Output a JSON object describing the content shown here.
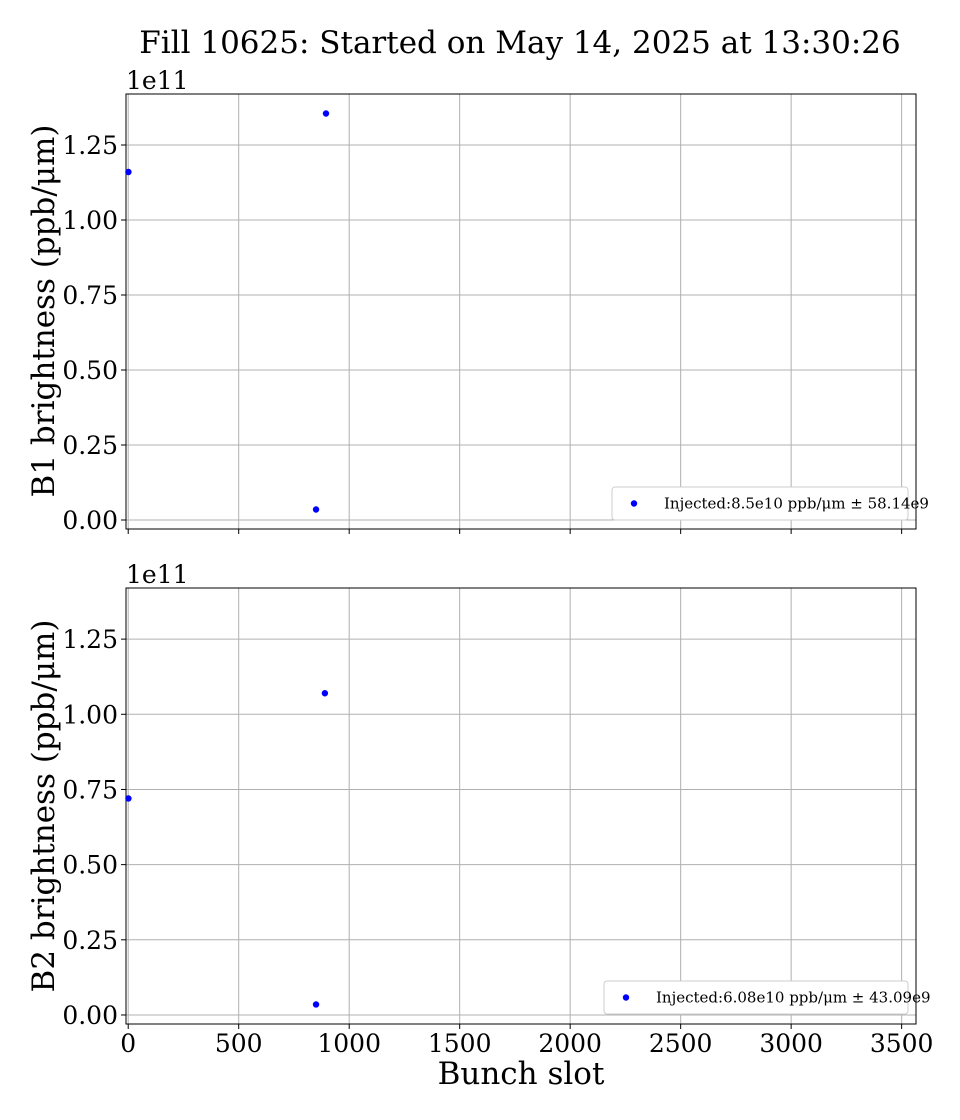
{
  "figure": {
    "title": "Fill 10625: Started on May 14, 2025 at 13:30:26"
  },
  "chart_data": [
    {
      "type": "scatter",
      "name": "b1-brightness",
      "xlabel": "",
      "ylabel": "B1 brightness (ppb/μm)",
      "offset_label": "1e11",
      "xlim": [
        -10,
        3565
      ],
      "ylim": [
        -3000000000.0,
        142000000000.0
      ],
      "x_ticks": [
        0,
        500,
        1000,
        1500,
        2000,
        2500,
        3000,
        3500
      ],
      "x_tick_labels": [],
      "y_ticks": [
        0,
        25000000000.0,
        50000000000.0,
        75000000000.0,
        100000000000.0,
        125000000000.0
      ],
      "y_tick_labels": [
        "0.00",
        "0.25",
        "0.50",
        "0.75",
        "1.00",
        "1.25"
      ],
      "grid": true,
      "legend_position": "lower-right",
      "series": [
        {
          "name": "Injected:8.5e10 ppb/μm ± 58.14e9",
          "color": "#0000ff",
          "x": [
            1,
            850,
            895
          ],
          "y": [
            116000000000.0,
            3500000000.0,
            135500000000.0
          ]
        }
      ]
    },
    {
      "type": "scatter",
      "name": "b2-brightness",
      "xlabel": "Bunch slot",
      "ylabel": "B2 brightness (ppb/μm)",
      "offset_label": "1e11",
      "xlim": [
        -10,
        3565
      ],
      "ylim": [
        -3000000000.0,
        142000000000.0
      ],
      "x_ticks": [
        0,
        500,
        1000,
        1500,
        2000,
        2500,
        3000,
        3500
      ],
      "x_tick_labels": [
        "0",
        "500",
        "1000",
        "1500",
        "2000",
        "2500",
        "3000",
        "3500"
      ],
      "y_ticks": [
        0,
        25000000000.0,
        50000000000.0,
        75000000000.0,
        100000000000.0,
        125000000000.0
      ],
      "y_tick_labels": [
        "0.00",
        "0.25",
        "0.50",
        "0.75",
        "1.00",
        "1.25"
      ],
      "grid": true,
      "legend_position": "lower-right",
      "series": [
        {
          "name": "Injected:6.08e10 ppb/μm ± 43.09e9",
          "color": "#0000ff",
          "x": [
            1,
            850,
            890
          ],
          "y": [
            72000000000.0,
            3500000000.0,
            107000000000.0
          ]
        }
      ]
    }
  ]
}
